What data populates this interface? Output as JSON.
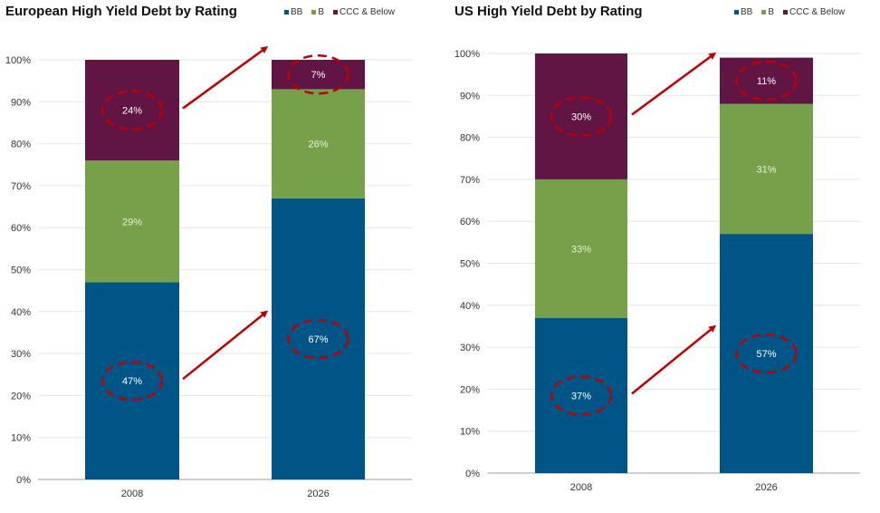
{
  "legend": {
    "items": [
      {
        "label": "BB",
        "color": "#005587"
      },
      {
        "label": "B",
        "color": "#76A04A"
      },
      {
        "label": "CCC & Below",
        "color": "#611544"
      }
    ]
  },
  "annotation_color": "#C00000",
  "chart_data": [
    {
      "type": "bar",
      "stacked": true,
      "title": "European High Yield Debt  by Rating",
      "categories": [
        "2008",
        "2026"
      ],
      "series": [
        {
          "name": "BB",
          "color": "#005587",
          "values": [
            47,
            67
          ],
          "labels": [
            "47%",
            "67%"
          ]
        },
        {
          "name": "B",
          "color": "#76A04A",
          "values": [
            29,
            26
          ],
          "labels": [
            "29%",
            "26%"
          ]
        },
        {
          "name": "CCC & Below",
          "color": "#611544",
          "values": [
            24,
            7
          ],
          "labels": [
            "24%",
            "7%"
          ]
        }
      ],
      "ylim": [
        0,
        100
      ],
      "yticks": [
        "0%",
        "10%",
        "20%",
        "30%",
        "40%",
        "50%",
        "60%",
        "70%",
        "80%",
        "90%",
        "100%"
      ],
      "xlabel": "",
      "ylabel": "",
      "grid": true,
      "legend_position": "top-right",
      "highlighted": [
        {
          "series": "BB",
          "from": "2008",
          "to": "2026"
        },
        {
          "series": "CCC & Below",
          "from": "2008",
          "to": "2026"
        }
      ]
    },
    {
      "type": "bar",
      "stacked": true,
      "title": "US High Yield Debt  by Rating",
      "categories": [
        "2008",
        "2026"
      ],
      "series": [
        {
          "name": "BB",
          "color": "#005587",
          "values": [
            37,
            57
          ],
          "labels": [
            "37%",
            "57%"
          ]
        },
        {
          "name": "B",
          "color": "#76A04A",
          "values": [
            33,
            31
          ],
          "labels": [
            "33%",
            "31%"
          ]
        },
        {
          "name": "CCC & Below",
          "color": "#611544",
          "values": [
            30,
            11
          ],
          "labels": [
            "30%",
            "11%"
          ]
        }
      ],
      "ylim": [
        0,
        100
      ],
      "yticks": [
        "0%",
        "10%",
        "20%",
        "30%",
        "40%",
        "50%",
        "60%",
        "70%",
        "80%",
        "90%",
        "100%"
      ],
      "xlabel": "",
      "ylabel": "",
      "grid": true,
      "legend_position": "top-right",
      "highlighted": [
        {
          "series": "BB",
          "from": "2008",
          "to": "2026"
        },
        {
          "series": "CCC & Below",
          "from": "2008",
          "to": "2026"
        }
      ]
    }
  ]
}
